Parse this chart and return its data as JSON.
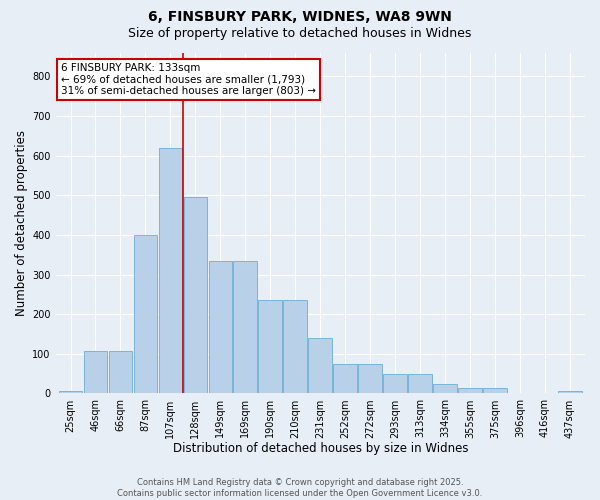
{
  "title_line1": "6, FINSBURY PARK, WIDNES, WA8 9WN",
  "title_line2": "Size of property relative to detached houses in Widnes",
  "xlabel": "Distribution of detached houses by size in Widnes",
  "ylabel": "Number of detached properties",
  "categories": [
    "25sqm",
    "46sqm",
    "66sqm",
    "87sqm",
    "107sqm",
    "128sqm",
    "149sqm",
    "169sqm",
    "190sqm",
    "210sqm",
    "231sqm",
    "252sqm",
    "272sqm",
    "293sqm",
    "313sqm",
    "334sqm",
    "355sqm",
    "375sqm",
    "396sqm",
    "416sqm",
    "437sqm"
  ],
  "values": [
    5,
    108,
    108,
    400,
    620,
    495,
    335,
    335,
    235,
    235,
    140,
    75,
    75,
    50,
    50,
    25,
    15,
    15,
    0,
    0,
    5
  ],
  "bar_color": "#b8d0e8",
  "bar_edge_color": "#6baed6",
  "highlight_bar_index": 5,
  "highlight_line_color": "#cc0000",
  "annotation_text": "6 FINSBURY PARK: 133sqm\n← 69% of detached houses are smaller (1,793)\n31% of semi-detached houses are larger (803) →",
  "annotation_box_color": "#ffffff",
  "annotation_box_edge_color": "#cc0000",
  "annotation_fontsize": 7.5,
  "ylim": [
    0,
    860
  ],
  "yticks": [
    0,
    100,
    200,
    300,
    400,
    500,
    600,
    700,
    800
  ],
  "background_color": "#e8eef5",
  "plot_background_color": "#e8eef5",
  "grid_color": "#ffffff",
  "footer_text": "Contains HM Land Registry data © Crown copyright and database right 2025.\nContains public sector information licensed under the Open Government Licence v3.0.",
  "title_fontsize": 10,
  "subtitle_fontsize": 9,
  "tick_fontsize": 7,
  "label_fontsize": 8.5
}
